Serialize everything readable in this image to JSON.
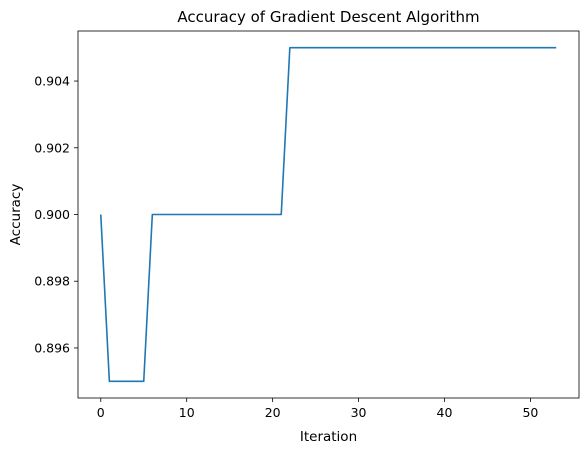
{
  "chart_data": {
    "type": "line",
    "title": "Accuracy of Gradient Descent Algorithm",
    "xlabel": "Iteration",
    "ylabel": "Accuracy",
    "xlim": [
      -2.65,
      55.65
    ],
    "ylim": [
      0.8945,
      0.9055
    ],
    "xticks": [
      0,
      10,
      20,
      30,
      40,
      50
    ],
    "yticks": [
      0.896,
      0.898,
      0.9,
      0.902,
      0.904
    ],
    "xtick_labels": [
      "0",
      "10",
      "20",
      "30",
      "40",
      "50"
    ],
    "ytick_labels": [
      "0.896",
      "0.898",
      "0.900",
      "0.902",
      "0.904"
    ],
    "grid": false,
    "series": [
      {
        "color": "#1f77b4",
        "x": [
          0,
          1,
          2,
          3,
          4,
          5,
          6,
          7,
          8,
          9,
          10,
          11,
          12,
          13,
          14,
          15,
          16,
          17,
          18,
          19,
          20,
          21,
          22,
          23,
          24,
          25,
          26,
          27,
          28,
          29,
          30,
          31,
          32,
          33,
          34,
          35,
          36,
          37,
          38,
          39,
          40,
          41,
          42,
          43,
          44,
          45,
          46,
          47,
          48,
          49,
          50,
          51,
          52,
          53
        ],
        "values": [
          0.9,
          0.895,
          0.895,
          0.895,
          0.895,
          0.895,
          0.9,
          0.9,
          0.9,
          0.9,
          0.9,
          0.9,
          0.9,
          0.9,
          0.9,
          0.9,
          0.9,
          0.9,
          0.9,
          0.9,
          0.9,
          0.9,
          0.905,
          0.905,
          0.905,
          0.905,
          0.905,
          0.905,
          0.905,
          0.905,
          0.905,
          0.905,
          0.905,
          0.905,
          0.905,
          0.905,
          0.905,
          0.905,
          0.905,
          0.905,
          0.905,
          0.905,
          0.905,
          0.905,
          0.905,
          0.905,
          0.905,
          0.905,
          0.905,
          0.905,
          0.905,
          0.905,
          0.905,
          0.905
        ]
      }
    ]
  }
}
